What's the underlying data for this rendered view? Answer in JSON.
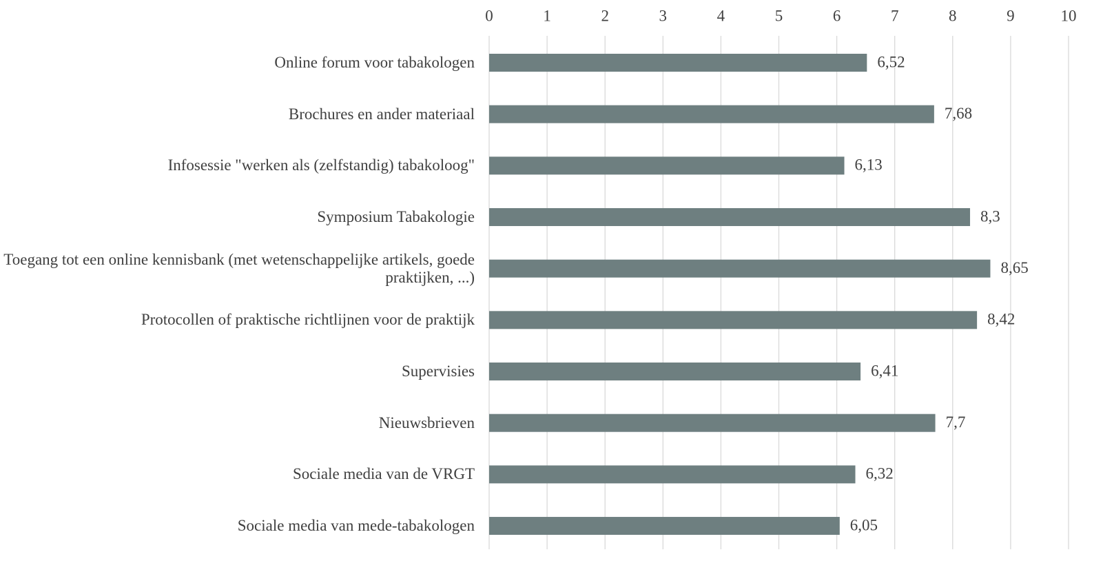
{
  "chart_data": {
    "type": "bar",
    "orientation": "horizontal",
    "categories": [
      "Online forum voor tabakologen",
      "Brochures en ander materiaal",
      "Infosessie \"werken als (zelfstandig) tabakoloog\"",
      "Symposium Tabakologie",
      "Toegang tot een online kennisbank (met wetenschappelijke artikels, goede praktijken, ...)",
      "Protocollen of praktische richtlijnen voor de praktijk",
      "Supervisies",
      "Nieuwsbrieven",
      "Sociale media van de VRGT",
      "Sociale media van mede-tabakologen"
    ],
    "values": [
      6.52,
      7.68,
      6.13,
      8.3,
      8.65,
      8.42,
      6.41,
      7.7,
      6.32,
      6.05
    ],
    "value_labels": [
      "6,52",
      "7,68",
      "6,13",
      "8,3",
      "8,65",
      "8,42",
      "6,41",
      "7,7",
      "6,32",
      "6,05"
    ],
    "color": "#6e7f80",
    "xlim": [
      0,
      10
    ],
    "xticks": [
      0,
      1,
      2,
      3,
      4,
      5,
      6,
      7,
      8,
      9,
      10
    ],
    "grid": true
  }
}
